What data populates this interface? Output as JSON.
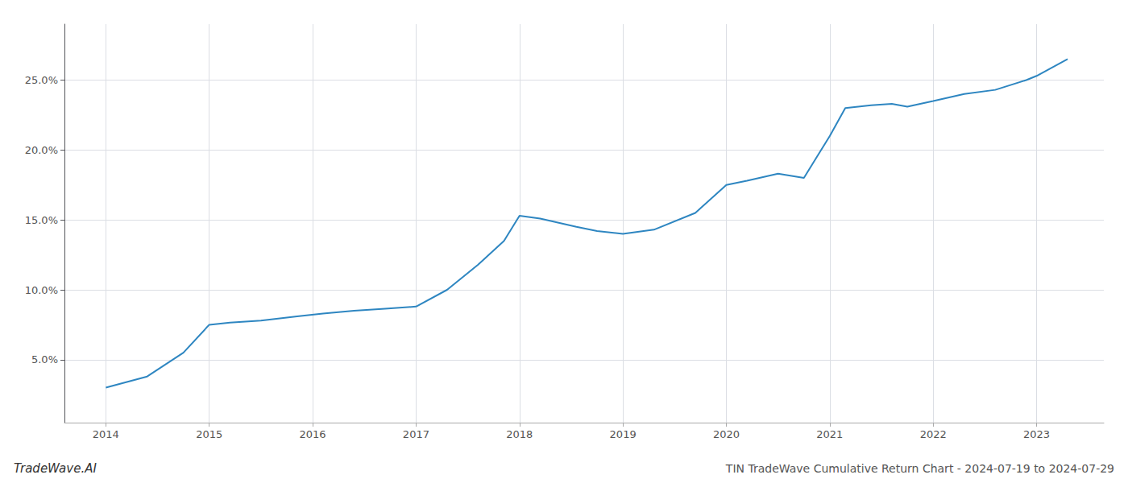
{
  "chart_data": {
    "type": "line",
    "title": "TIN TradeWave Cumulative Return Chart - 2024-07-19 to 2024-07-29",
    "annotations": [
      "TradeWave.AI"
    ],
    "color": "#2e86c1",
    "x": [
      2014.0,
      2014.4,
      2014.75,
      2015.0,
      2015.2,
      2015.5,
      2015.85,
      2016.1,
      2016.4,
      2016.7,
      2017.0,
      2017.3,
      2017.6,
      2017.85,
      2018.0,
      2018.2,
      2018.55,
      2018.75,
      2019.0,
      2019.3,
      2019.7,
      2020.0,
      2020.2,
      2020.5,
      2020.75,
      2021.0,
      2021.15,
      2021.4,
      2021.6,
      2021.75,
      2022.0,
      2022.3,
      2022.6,
      2022.9,
      2023.0,
      2023.3
    ],
    "values": [
      3.0,
      3.8,
      5.5,
      7.5,
      7.65,
      7.8,
      8.1,
      8.3,
      8.5,
      8.65,
      8.8,
      10.0,
      11.8,
      13.5,
      15.3,
      15.1,
      14.5,
      14.2,
      14.0,
      14.3,
      15.5,
      17.5,
      17.8,
      18.3,
      18.0,
      21.0,
      23.0,
      23.2,
      23.3,
      23.1,
      23.5,
      24.0,
      24.3,
      25.0,
      25.3,
      26.5
    ],
    "xlim": [
      2013.6,
      2023.65
    ],
    "ylim": [
      0.5,
      29.0
    ],
    "xticks": [
      2014,
      2015,
      2016,
      2017,
      2018,
      2019,
      2020,
      2021,
      2022,
      2023
    ],
    "yticks": [
      {
        "value": 5.0,
        "label": "5.0%"
      },
      {
        "value": 10.0,
        "label": "10.0%"
      },
      {
        "value": 15.0,
        "label": "15.0%"
      },
      {
        "value": 20.0,
        "label": "20.0%"
      },
      {
        "value": 25.0,
        "label": "25.0%"
      }
    ],
    "grid": true
  }
}
